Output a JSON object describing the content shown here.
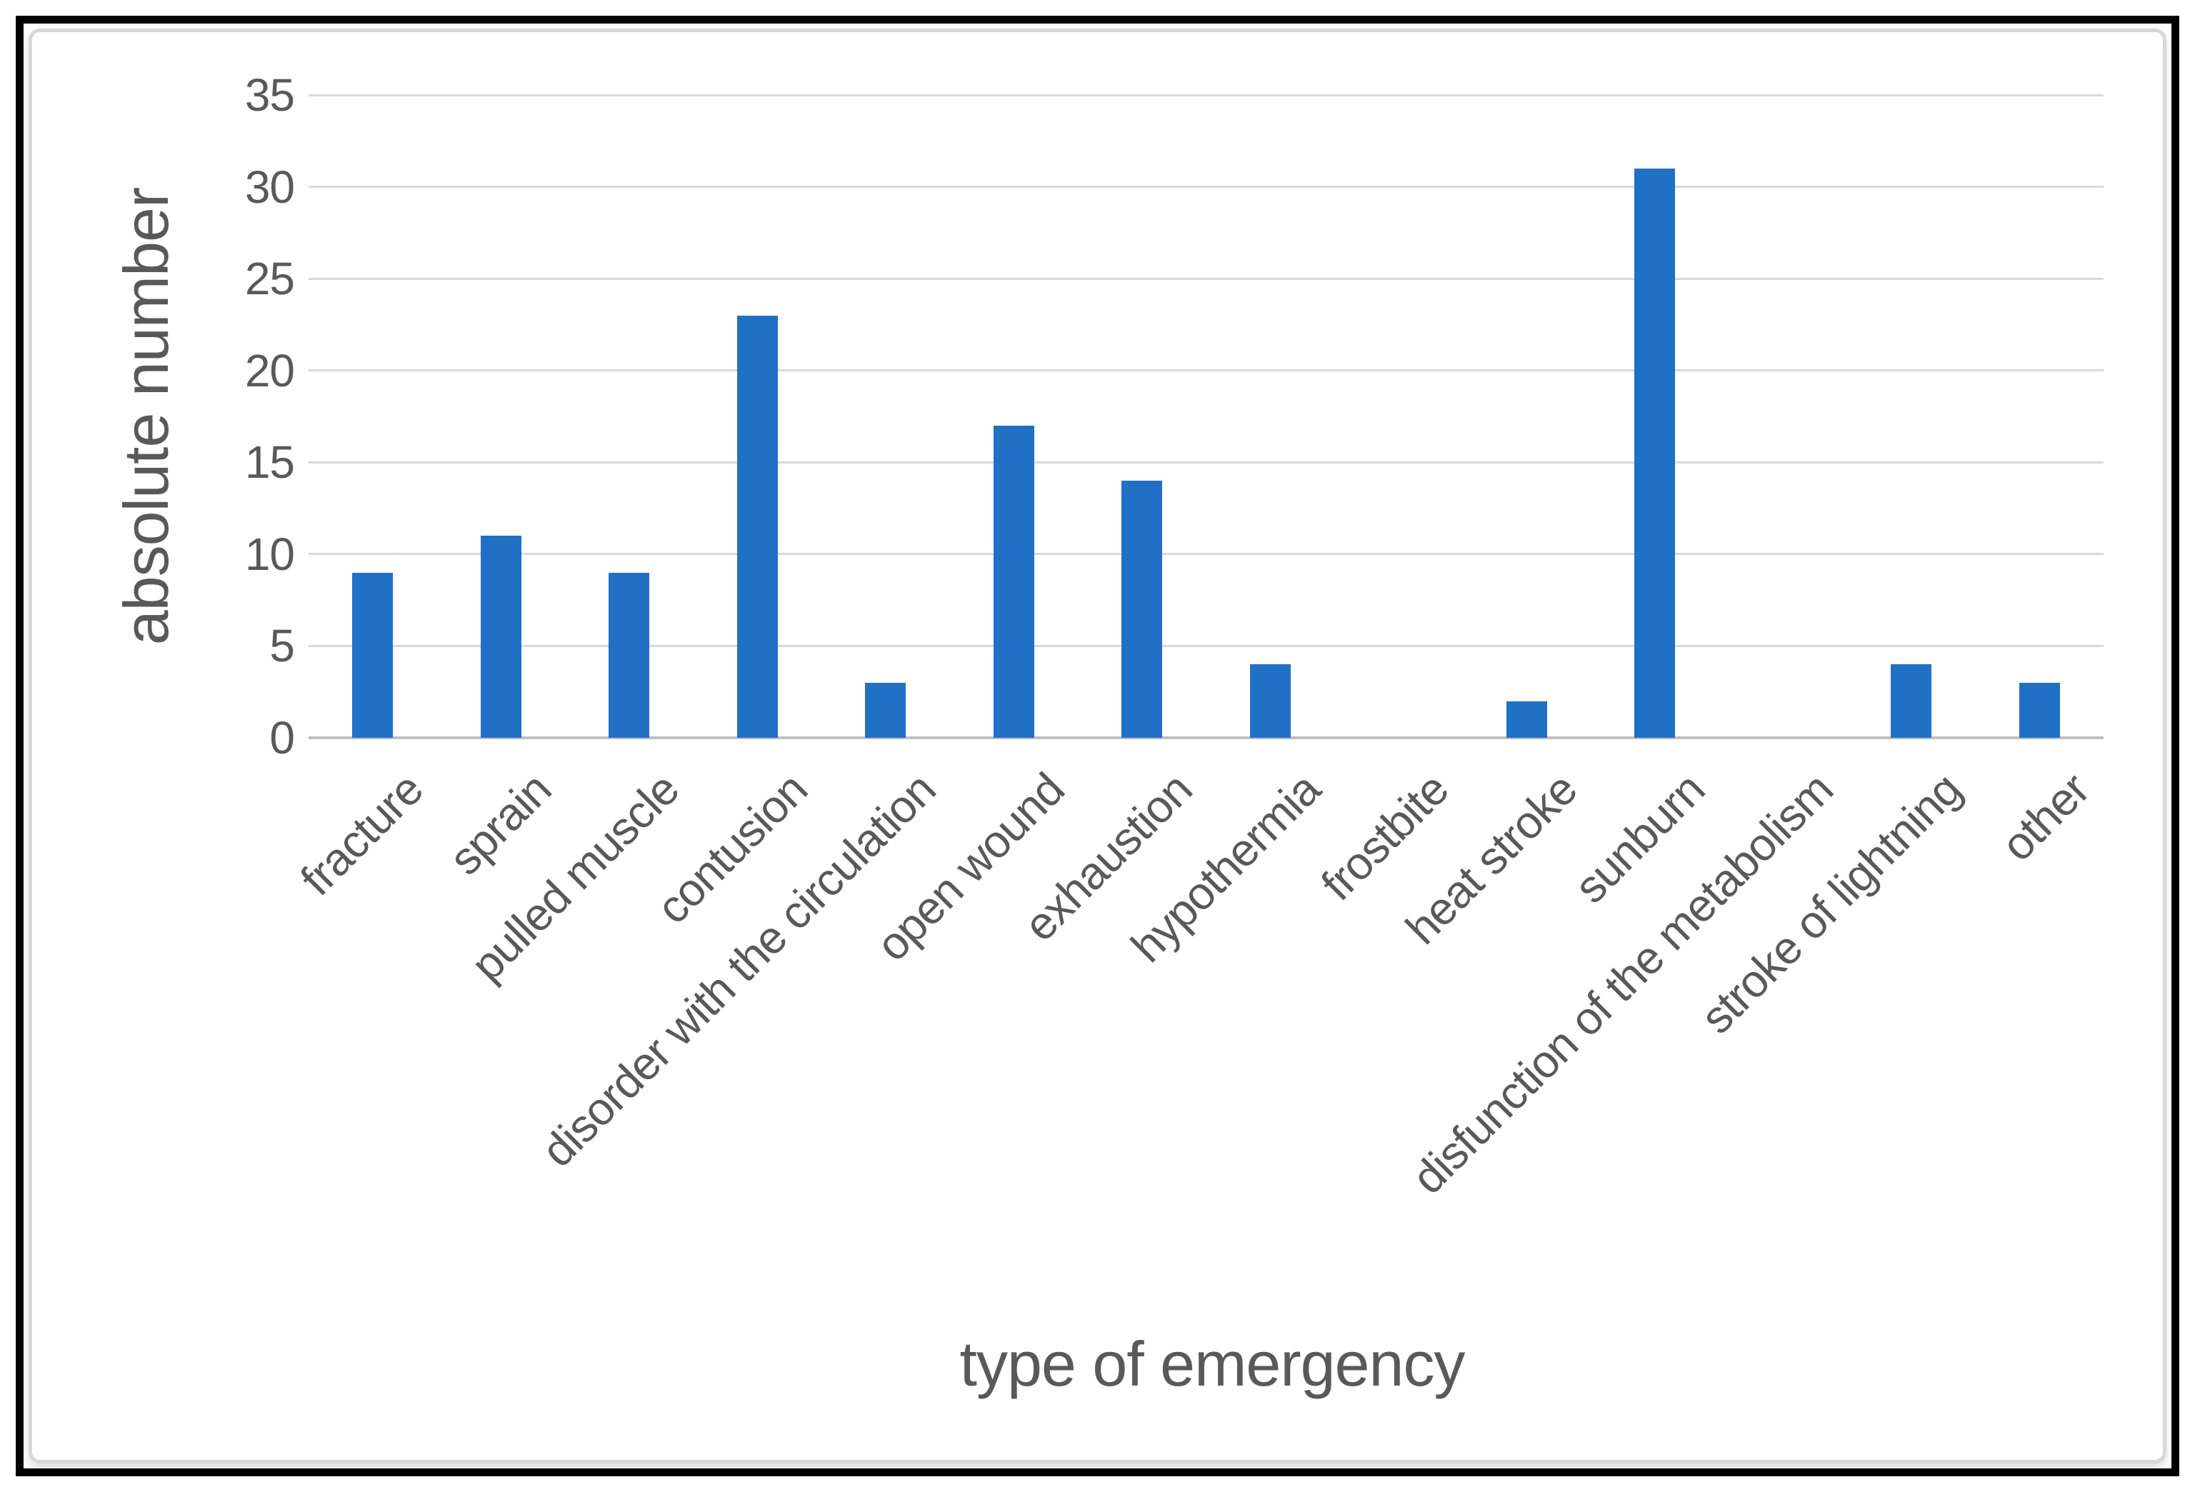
{
  "chart_data": {
    "type": "bar",
    "title": "",
    "ylabel": "absolute number",
    "xlabel": "type of emergency",
    "categories": [
      "fracture",
      "sprain",
      "pulled muscle",
      "contusion",
      "disorder with the circulation",
      "open wound",
      "exhaustion",
      "hypothermia",
      "frostbite",
      "heat stroke",
      "sunburn",
      "disfunction of the metabolism",
      "stroke of lightning",
      "other"
    ],
    "values": [
      9,
      11,
      9,
      23,
      3,
      17,
      14,
      4,
      0,
      2,
      31,
      0,
      4,
      3
    ],
    "ylim": [
      0,
      35
    ],
    "yticks": [
      0,
      5,
      10,
      15,
      20,
      25,
      30,
      35
    ],
    "grid": "horizontal-only",
    "legend": "none",
    "colors": {
      "bar": "#2071C6",
      "gridline": "#D9D9D9",
      "axis_line": "#BFBFBF",
      "text": "#595959",
      "frame_border": "#D8D8D8",
      "outer_border": "#000000",
      "background": "#FFFFFF"
    }
  }
}
